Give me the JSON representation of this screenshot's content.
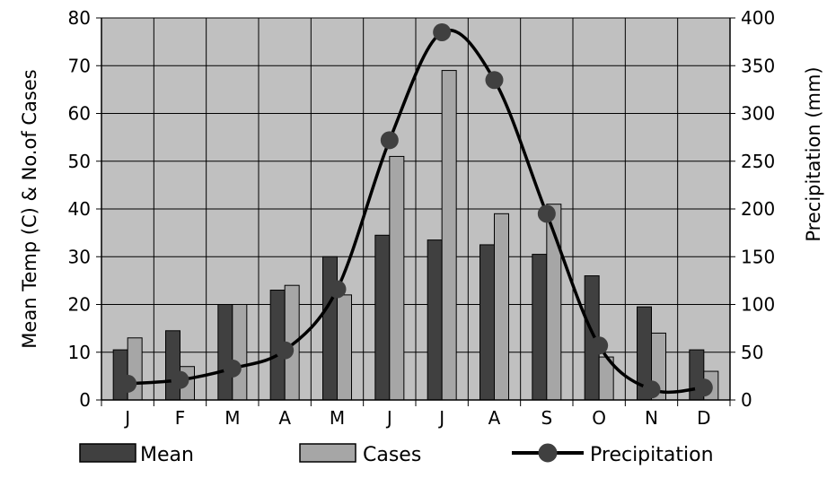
{
  "chart_data": {
    "type": "bar",
    "categories": [
      "J",
      "F",
      "M",
      "A",
      "M",
      "J",
      "J",
      "A",
      "S",
      "O",
      "N",
      "D"
    ],
    "series": [
      {
        "name": "Mean",
        "kind": "bar",
        "axis": "left",
        "color": "#404040",
        "values": [
          10.5,
          14.5,
          20,
          23,
          30,
          34.5,
          33.5,
          32.5,
          30.5,
          26,
          19.5,
          10.5
        ]
      },
      {
        "name": "Cases",
        "kind": "bar",
        "axis": "left",
        "color": "#a6a6a6",
        "values": [
          13,
          7,
          20,
          24,
          22,
          51,
          69,
          39,
          41,
          9,
          14,
          6
        ]
      },
      {
        "name": "Precipitation",
        "kind": "line",
        "axis": "right",
        "color": "#000000",
        "values": [
          17,
          21,
          33,
          52,
          116,
          272,
          385,
          335,
          195,
          57,
          11,
          13
        ]
      }
    ],
    "ylabel": "Mean Temp (C) & No.of Cases",
    "y2label": "Precipitation (mm)",
    "ylim": [
      0,
      80
    ],
    "y2lim": [
      0,
      400
    ],
    "yticks": [
      "0",
      "10",
      "20",
      "30",
      "40",
      "50",
      "60",
      "70",
      "80"
    ],
    "y2ticks": [
      "0",
      "50",
      "100",
      "150",
      "200",
      "250",
      "300",
      "350",
      "400"
    ],
    "grid": true,
    "plot_background": "#c0c0c0",
    "legend": {
      "position": "bottom",
      "items": [
        {
          "label": "Mean"
        },
        {
          "label": "Cases"
        },
        {
          "label": "Precipitation"
        }
      ]
    }
  }
}
